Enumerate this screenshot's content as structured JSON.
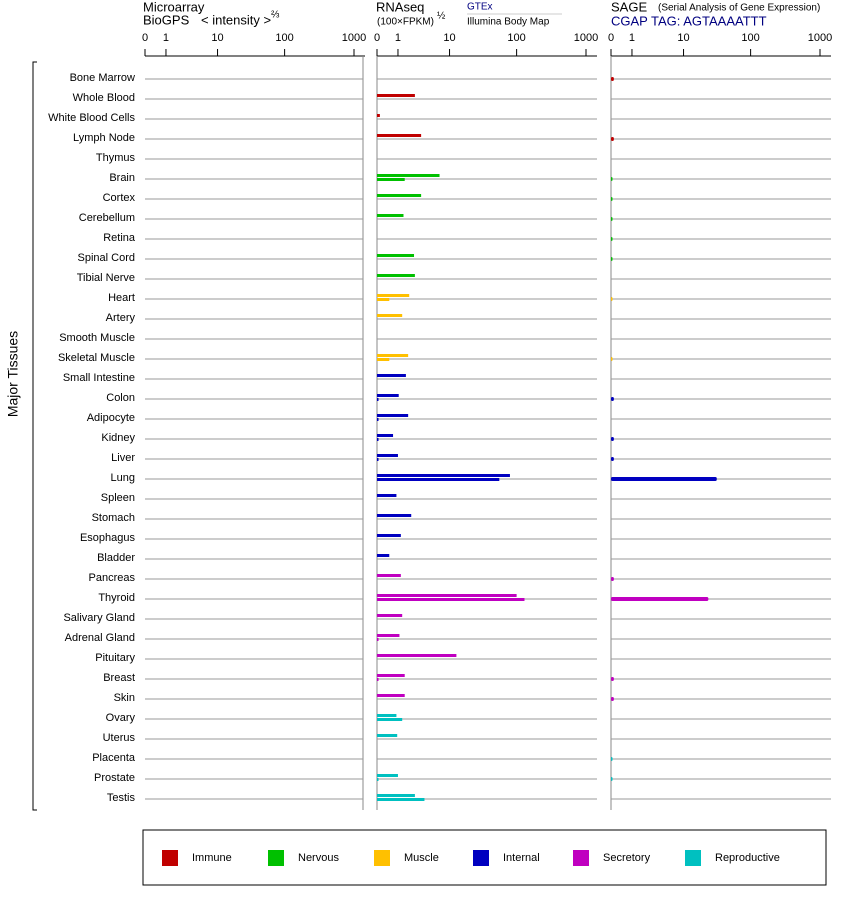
{
  "chart_data": {
    "type": "bar",
    "y_label": "Major Tissues",
    "categories": [
      "Bone Marrow",
      "Whole Blood",
      "White Blood Cells",
      "Lymph Node",
      "Thymus",
      "Brain",
      "Cortex",
      "Cerebellum",
      "Retina",
      "Spinal Cord",
      "Tibial Nerve",
      "Heart",
      "Artery",
      "Smooth Muscle",
      "Skeletal Muscle",
      "Small Intestine",
      "Colon",
      "Adipocyte",
      "Kidney",
      "Liver",
      "Lung",
      "Spleen",
      "Stomach",
      "Esophagus",
      "Bladder",
      "Pancreas",
      "Thyroid",
      "Salivary Gland",
      "Adrenal Gland",
      "Pituitary",
      "Breast",
      "Skin",
      "Ovary",
      "Uterus",
      "Placenta",
      "Prostate",
      "Testis"
    ],
    "category_groups": [
      "Immune",
      "Immune",
      "Immune",
      "Immune",
      "Immune",
      "Nervous",
      "Nervous",
      "Nervous",
      "Nervous",
      "Nervous",
      "Nervous",
      "Muscle",
      "Muscle",
      "Muscle",
      "Muscle",
      "Internal",
      "Internal",
      "Internal",
      "Internal",
      "Internal",
      "Internal",
      "Internal",
      "Internal",
      "Internal",
      "Internal",
      "Secretory",
      "Secretory",
      "Secretory",
      "Secretory",
      "Secretory",
      "Secretory",
      "Secretory",
      "Reproductive",
      "Reproductive",
      "Reproductive",
      "Reproductive",
      "Reproductive"
    ],
    "legend": [
      {
        "name": "Immune",
        "color": "#c00000"
      },
      {
        "name": "Nervous",
        "color": "#00c000"
      },
      {
        "name": "Muscle",
        "color": "#ffc000"
      },
      {
        "name": "Internal",
        "color": "#0000c0"
      },
      {
        "name": "Secretory",
        "color": "#c000c0"
      },
      {
        "name": "Reproductive",
        "color": "#00c0c0"
      }
    ],
    "panels": [
      {
        "title": "Microarray",
        "subtitle": "BioGPS",
        "x_label": "< intensity >",
        "x_label_exponent": "⅔",
        "xlim": [
          0,
          1000
        ],
        "xticks": [
          0,
          1,
          10,
          100,
          1000
        ],
        "series": []
      },
      {
        "title": "RNAseq",
        "x_label": "(100×FPKM)",
        "x_label_exponent": "½",
        "xlim": [
          0,
          1000
        ],
        "xticks": [
          0,
          1,
          10,
          100,
          1000
        ],
        "series": [
          {
            "name": "GTEx",
            "values": [
              null,
              2.5,
              0.1,
              3.3,
              null,
              6.9,
              3.3,
              1.4,
              null,
              2.4,
              2.5,
              1.9,
              1.3,
              null,
              1.8,
              1.6,
              1.05,
              1.8,
              0.7,
              1.0,
              80,
              0.9,
              2.1,
              1.2,
              0.5,
              1.2,
              100,
              1.3,
              1.1,
              12.8,
              1.5,
              1.5,
              0.9,
              0.95,
              null,
              1.0,
              2.5
            ]
          },
          {
            "name": "Illumina Body Map",
            "values": [
              null,
              null,
              null,
              null,
              null,
              1.5,
              null,
              null,
              null,
              null,
              null,
              0.5,
              null,
              null,
              0.5,
              null,
              0.03,
              0.03,
              0.03,
              0.03,
              56,
              null,
              null,
              null,
              null,
              null,
              130,
              null,
              0.03,
              null,
              0.03,
              null,
              1.3,
              null,
              null,
              0.03,
              3.8
            ]
          }
        ]
      },
      {
        "title": "SAGE",
        "subtitle": "(Serial Analysis of Gene Expression)",
        "x_label": "CGAP TAG: AGTAAAATTT",
        "xlim": [
          0,
          1000
        ],
        "xticks": [
          0,
          1,
          10,
          100,
          1000
        ],
        "series": [
          {
            "name": "SAGE",
            "values": [
              0.1,
              null,
              null,
              0.1,
              null,
              0.05,
              0.05,
              0.05,
              0.05,
              0.05,
              null,
              0.02,
              null,
              null,
              0.02,
              null,
              0.1,
              null,
              0.1,
              0.1,
              32,
              null,
              null,
              null,
              null,
              0.1,
              24,
              null,
              null,
              null,
              0.1,
              0.1,
              null,
              null,
              0.05,
              0.05,
              null
            ]
          }
        ]
      }
    ]
  }
}
